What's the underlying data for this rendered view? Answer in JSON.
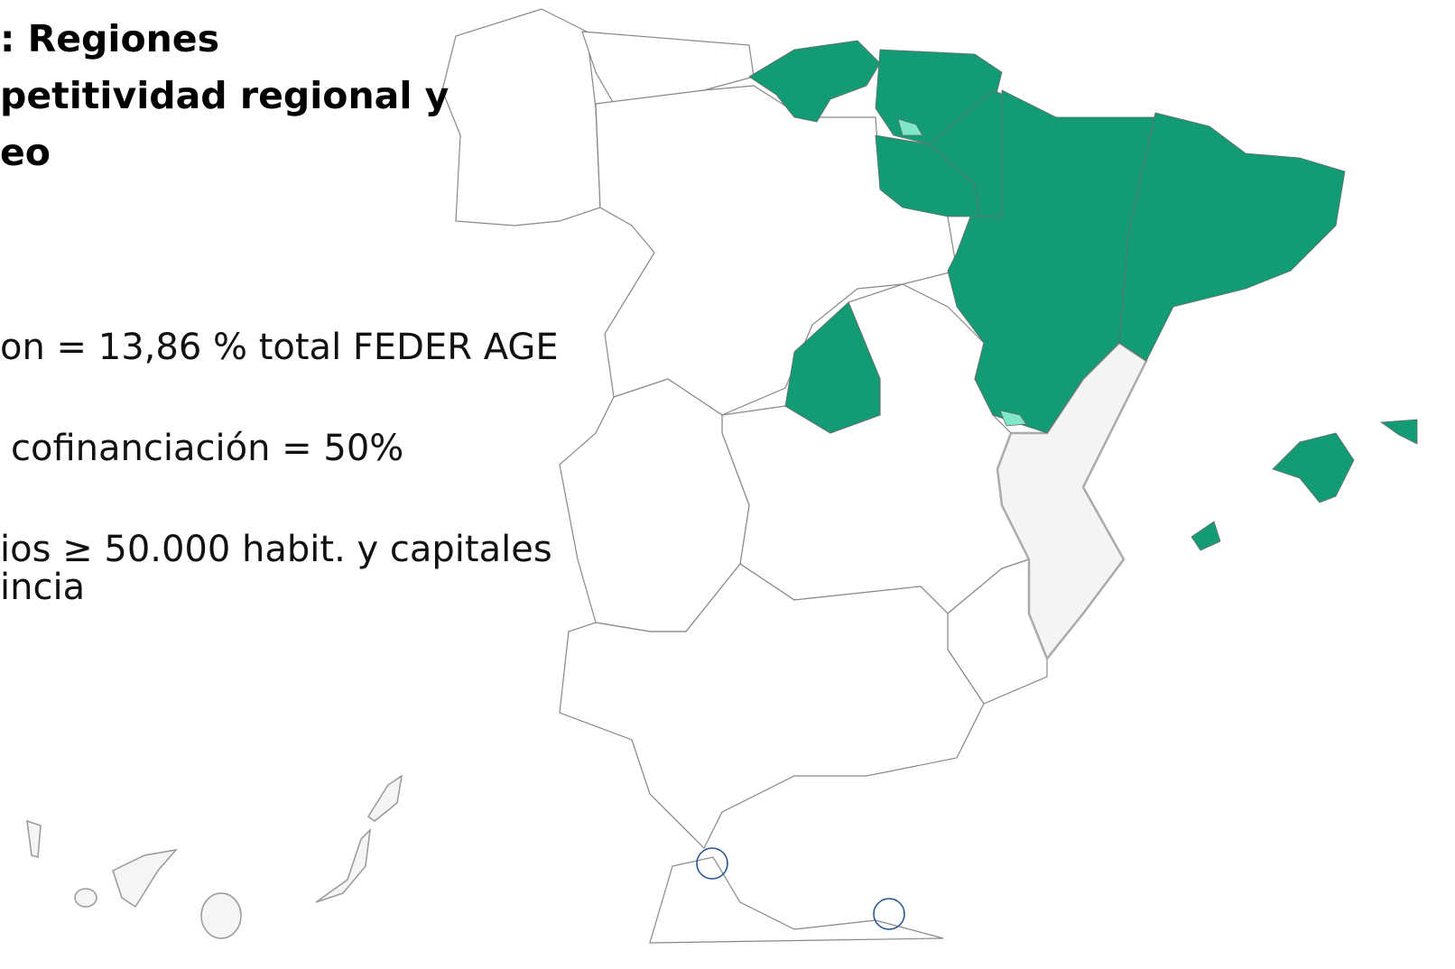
{
  "header": {
    "title_lines": [
      ": Regiones",
      "petitividad regional y",
      "eo"
    ]
  },
  "bullets": [
    {
      "lines": [
        "on = 13,86 % total FEDER AGE"
      ]
    },
    {
      "lines": [
        "cofinanciación = 50%"
      ]
    },
    {
      "lines": [
        "ios ≥ 50.000 habit. y capitales",
        "incia"
      ]
    }
  ]
}
